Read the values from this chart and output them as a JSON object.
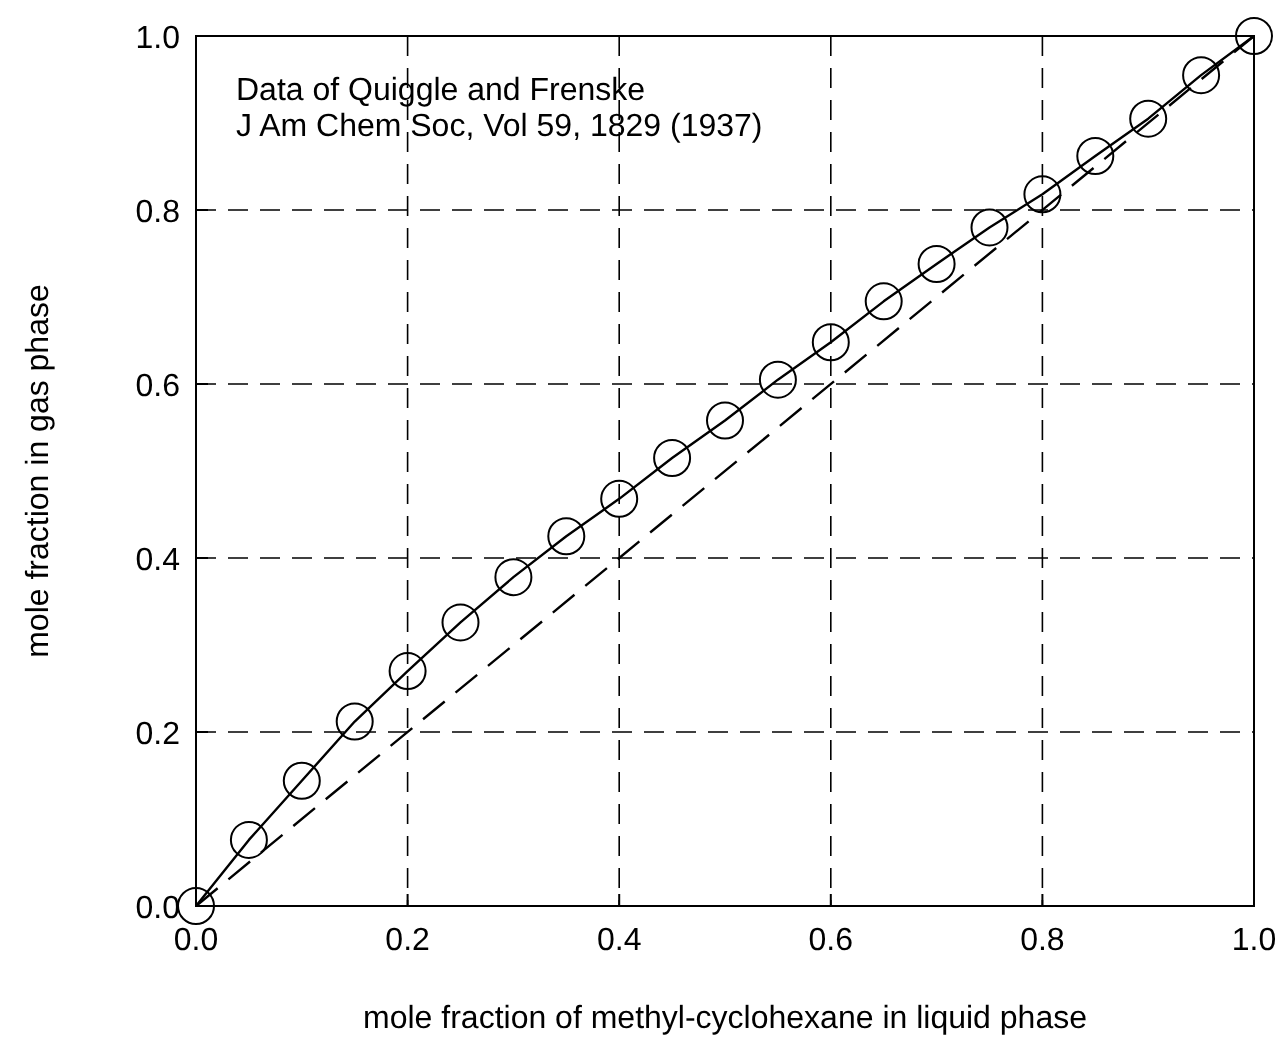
{
  "chart_data": {
    "type": "scatter",
    "xlabel": "mole fraction of methyl-cyclohexane in liquid phase",
    "ylabel": "mole fraction in gas phase",
    "annotations": [
      "Data of Quiggle and Frenske",
      "J Am Chem Soc, Vol 59, 1829 (1937)"
    ],
    "x": [
      0,
      0.05,
      0.1,
      0.15,
      0.2,
      0.25,
      0.3,
      0.35,
      0.4,
      0.45,
      0.5,
      0.55,
      0.6,
      0.65,
      0.7,
      0.75,
      0.8,
      0.85,
      0.9,
      0.95,
      1.0
    ],
    "series": [
      {
        "color": "#000000",
        "marker": "circle",
        "values": [
          0,
          0.076,
          0.144,
          0.212,
          0.27,
          0.326,
          0.378,
          0.425,
          0.468,
          0.515,
          0.558,
          0.605,
          0.648,
          0.695,
          0.738,
          0.78,
          0.818,
          0.862,
          0.905,
          0.955,
          1.0
        ]
      },
      {
        "type": "line",
        "color": "#000000",
        "marker": "none",
        "line_style": "solid",
        "values": [
          0,
          0.076,
          0.144,
          0.212,
          0.27,
          0.326,
          0.378,
          0.425,
          0.468,
          0.515,
          0.558,
          0.605,
          0.648,
          0.695,
          0.738,
          0.78,
          0.818,
          0.862,
          0.905,
          0.955,
          1.0
        ]
      },
      {
        "type": "line",
        "color": "#000000",
        "marker": "none",
        "line_style": "dashed",
        "x": [
          0,
          1
        ],
        "values": [
          0,
          1
        ]
      }
    ],
    "xlim": [
      0,
      1
    ],
    "ylim": [
      0,
      1
    ],
    "xticks": [
      {
        "value": 0,
        "label": "0.0"
      },
      0.2,
      0.4,
      0.6,
      0.8,
      {
        "value": 1,
        "label": "1.0"
      }
    ],
    "yticks": [
      {
        "value": 0,
        "label": "0.0"
      },
      0.2,
      0.4,
      0.6,
      0.8,
      {
        "value": 1,
        "label": "1.0"
      }
    ],
    "grid": true
  }
}
